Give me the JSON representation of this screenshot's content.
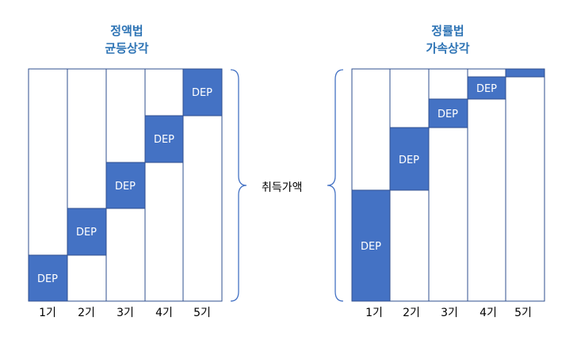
{
  "left_chart": {
    "title_line1": "정액법",
    "title_line2": "균등상각",
    "periods": [
      "1기",
      "2기",
      "3기",
      "4기",
      "5기"
    ],
    "dep_label": "DEP"
  },
  "right_chart": {
    "title_line1": "정률법",
    "title_line2": "가속상각",
    "periods": [
      "1기",
      "2기",
      "3기",
      "4기",
      "5기"
    ],
    "dep_label": "DEP"
  },
  "center_label": "취득가액",
  "colors": {
    "dep_fill": "#4472c4",
    "border": "#2f4f8f",
    "title": "#2e74b5"
  }
}
